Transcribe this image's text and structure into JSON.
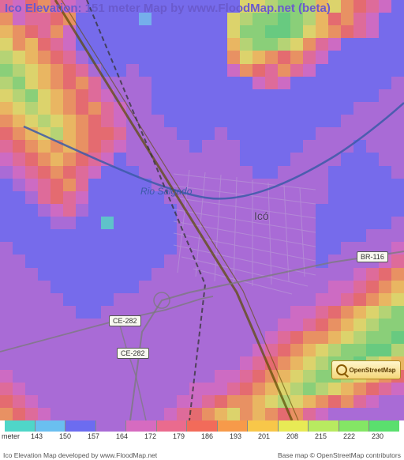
{
  "title": "Ico Elevation: 151 meter Map by www.FloodMap.net (beta)",
  "city_label": "Icó",
  "river_label": "Rio Salgado",
  "roads": {
    "br116": "BR-116",
    "ce282": "CE-282"
  },
  "osm_logo_text": "OpenStreetMap",
  "footer": {
    "left": "Ico Elevation Map developed by www.FloodMap.net",
    "right": "Base map © OpenStreetMap contributors"
  },
  "legend": {
    "unit_label": "meter",
    "entries": [
      {
        "value": "143",
        "color": "#4fd6c8"
      },
      {
        "value": "150",
        "color": "#6abff0"
      },
      {
        "value": "157",
        "color": "#6c6cf0"
      },
      {
        "value": "164",
        "color": "#a96bd6"
      },
      {
        "value": "172",
        "color": "#d66bc0"
      },
      {
        "value": "179",
        "color": "#ea6b8e"
      },
      {
        "value": "186",
        "color": "#f26b5a"
      },
      {
        "value": "193",
        "color": "#f79a4a"
      },
      {
        "value": "201",
        "color": "#f8c749"
      },
      {
        "value": "208",
        "color": "#e8ea55"
      },
      {
        "value": "215",
        "color": "#b8ea60"
      },
      {
        "value": "222",
        "color": "#84e665"
      },
      {
        "value": "230",
        "color": "#5adf6e"
      }
    ]
  },
  "map_style": {
    "title_color": "#6a5acd",
    "background_color": "#ffffff",
    "heatmap_opacity": 0.82,
    "road_main_color": "#5a4a00",
    "road_thin_color": "#7a7a7a",
    "rail_color": "#333333",
    "river_color": "#3c5aa8",
    "city_grid_color": "#bfa8d8"
  },
  "heatmap_palette": {
    "p": "#a96bd6",
    "b": "#6c6cf0",
    "c": "#6abff0",
    "t": "#4fd6c8",
    "m": "#d66bc0",
    "r": "#ea6b8e",
    "o": "#f26b5a",
    "a": "#f79a4a",
    "y": "#f8c749",
    "l": "#e8ea55",
    "g": "#b8ea60",
    "G": "#84e665",
    "D": "#5adf6e"
  },
  "heatmap_rows": [
    "rmoarmpbbbbbbbbbbbbllgGGgylaormb",
    "amrroabbbbbcbbbbbblgGGDGgyoarmbb",
    "yaorambbbbbbbbbbbblGGDDGlyaormbb",
    "layormbbbbbbbbbbbbygGGglarmbbbbb",
    "glyaorpbbbbbbbbbbbalyaoarmbbbbbb",
    "Gglyaorpbbpbbbbbbbmaorarmbbbbbbb",
    "gGlyaoarppppbbbbbbbbmrmbbbbbbbbp",
    "lgGlyaormpppbbbbbbbbbbbbbbbbbbpp",
    "ylglyaoarmppbbbbbbbbbbbbbbbbpppp",
    "aylglyaormpppbbbbbbbbbbbbbbppppp",
    "oaylgyaoorppppbbbpbbbbbbbppppppp",
    "roayayaormpppppbpppbbbbbppppbppp",
    "mroayaormbpppppppppbbbbppppbbbpp",
    "pmroaormbbbpppppppppbbppppbbbbbp",
    "bpmroarbbbbbppppppppppppppbbbbbb",
    "bbprormbbbbbbpppppppppppppbbbbbb",
    "bbbpmrpbbbbbbbpppppppppppbbbbbbb",
    "bbbbppbbtbbbbbpppppppppppbbbbbbp",
    "bbbbbbbbbbbbbbpppppppppppbbbbppp",
    "pbbbbbbbbbbbbbpppppppppppbbppppm",
    "ppbbbbbbbbbbbppppppppppppbppppmr",
    "pppbbbbbbbbbppppppppppppppppmroa",
    "ppppbbbbbbbpppppppppppppppmmroay",
    "pppppbbbbppppppppppppppppmmroayl",
    "ppppppbbpppppppppppppppmmroaylgG",
    "ppppppppppppppppppppppmmroaylgGG",
    "pppppppppppppppppppppmroaaylgGGD",
    "ppppppppppppppppppppmroaylgGGDDg",
    "pppppppppppppppppppmroaylgGGDgly",
    "mppppppppppppppppmmroaylgGGglyao",
    "rmpppppppppppppmmmroaylgGglyaorm",
    "ormpppppppppppmmroaaylglyaoarmpp",
    "aormpppppppppmroaylayaoarmpppppp"
  ]
}
